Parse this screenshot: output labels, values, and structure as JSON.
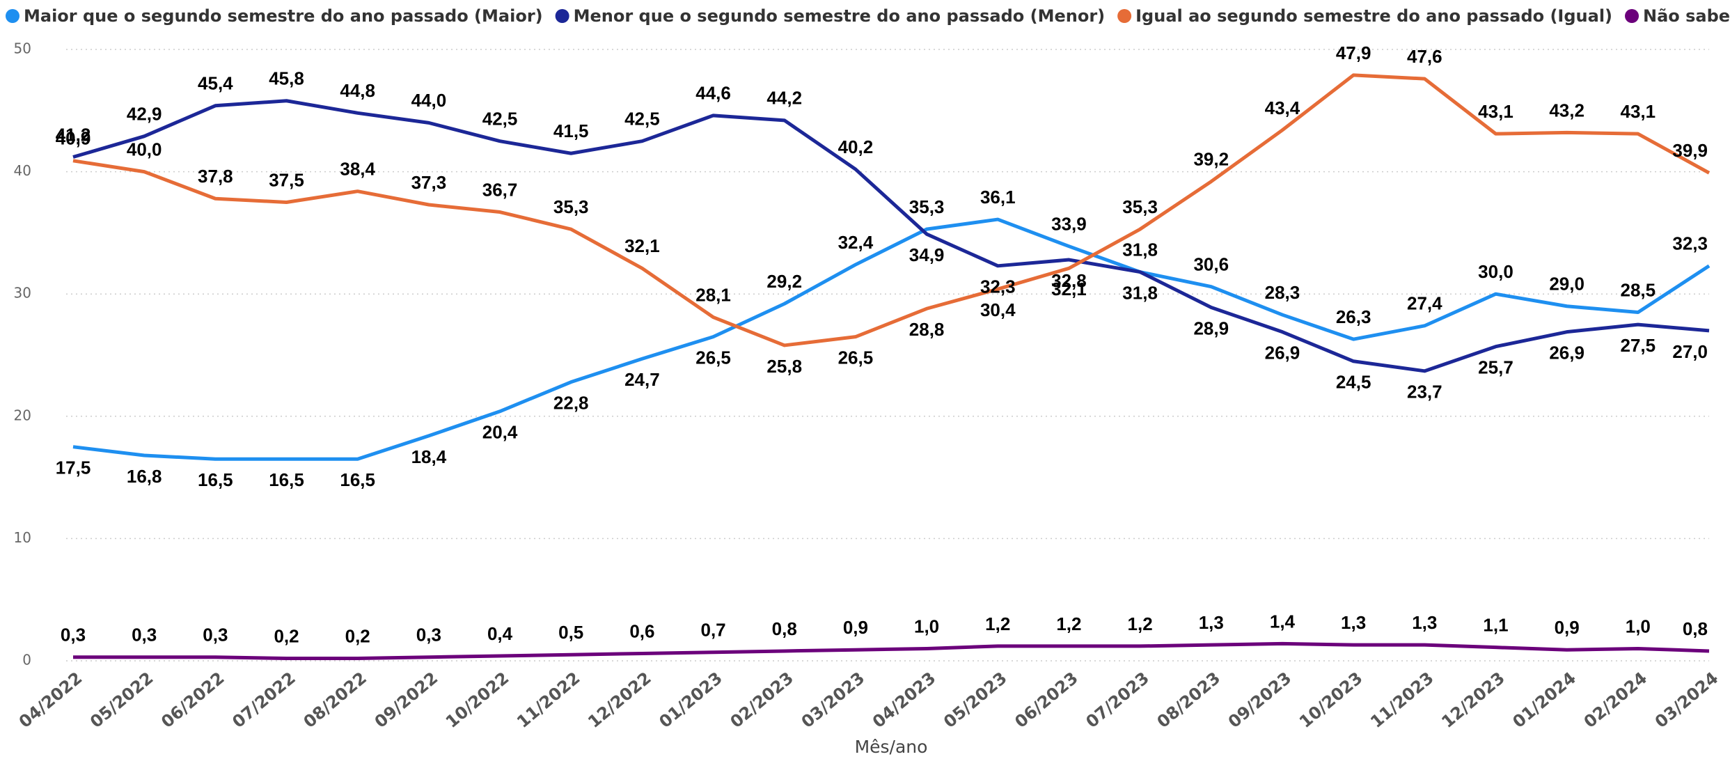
{
  "chart_data": {
    "type": "line",
    "x_label": "Mês/ano",
    "categories": [
      "04/2022",
      "05/2022",
      "06/2022",
      "07/2022",
      "08/2022",
      "09/2022",
      "10/2022",
      "11/2022",
      "12/2022",
      "01/2023",
      "02/2023",
      "03/2023",
      "04/2023",
      "05/2023",
      "06/2023",
      "07/2023",
      "08/2023",
      "09/2023",
      "10/2023",
      "11/2023",
      "12/2023",
      "01/2024",
      "02/2024",
      "03/2024"
    ],
    "ylim": [
      0,
      50
    ],
    "yticks": [
      0,
      10,
      20,
      30,
      40,
      50
    ],
    "grid": true,
    "legend": "top",
    "series": [
      {
        "name": "Maior que o segundo semestre do ano passado (Maior)",
        "color": "#1e8ff0",
        "values": [
          17.5,
          16.8,
          16.5,
          16.5,
          16.5,
          18.4,
          20.4,
          22.8,
          24.7,
          26.5,
          29.2,
          32.4,
          35.3,
          36.1,
          33.9,
          31.8,
          30.6,
          28.3,
          26.3,
          27.4,
          30.0,
          29.0,
          28.5,
          32.3
        ],
        "value_labels": [
          "17,5",
          "16,8",
          "16,5",
          "16,5",
          "16,5",
          "18,4",
          "20,4",
          "22,8",
          "24,7",
          "26,5",
          "29,2",
          "32,4",
          "35,3",
          "36,1",
          "33,9",
          "31,8",
          "30,6",
          "28,3",
          "26,3",
          "27,4",
          "30,0",
          "29,0",
          "28,5",
          "32,3"
        ]
      },
      {
        "name": "Menor que o segundo semestre do ano passado (Menor)",
        "color": "#1c2797",
        "values": [
          41.2,
          42.9,
          45.4,
          45.8,
          44.8,
          44.0,
          42.5,
          41.5,
          42.5,
          44.6,
          44.2,
          40.2,
          34.9,
          32.3,
          32.8,
          31.8,
          28.9,
          26.9,
          24.5,
          23.7,
          25.7,
          26.9,
          27.5,
          27.0
        ],
        "value_labels": [
          "41,2",
          "42,9",
          "45,4",
          "45,8",
          "44,8",
          "44,0",
          "42,5",
          "41,5",
          "42,5",
          "44,6",
          "44,2",
          "40,2",
          "34,9",
          "32,3",
          "32,8",
          "31,8",
          "28,9",
          "26,9",
          "24,5",
          "23,7",
          "25,7",
          "26,9",
          "27,5",
          "27,0"
        ]
      },
      {
        "name": "Igual ao segundo semestre do ano passado (Igual)",
        "color": "#e66c37",
        "values": [
          40.9,
          40.0,
          37.8,
          37.5,
          38.4,
          37.3,
          36.7,
          35.3,
          32.1,
          28.1,
          25.8,
          26.5,
          28.8,
          30.4,
          32.1,
          35.3,
          39.2,
          43.4,
          47.9,
          47.6,
          43.1,
          43.2,
          43.1,
          39.9
        ],
        "value_labels": [
          "40,9",
          "40,0",
          "37,8",
          "37,5",
          "38,4",
          "37,3",
          "36,7",
          "35,3",
          "32,1",
          "28,1",
          "25,8",
          "26,5",
          "28,8",
          "30,4",
          "32,1",
          "35,3",
          "39,2",
          "43,4",
          "47,9",
          "47,6",
          "43,1",
          "43,2",
          "43,1",
          "39,9"
        ]
      },
      {
        "name": "Não sabe / Não respondeu",
        "color": "#6b007b",
        "values": [
          0.3,
          0.3,
          0.3,
          0.2,
          0.2,
          0.3,
          0.4,
          0.5,
          0.6,
          0.7,
          0.8,
          0.9,
          1.0,
          1.2,
          1.2,
          1.2,
          1.3,
          1.4,
          1.3,
          1.3,
          1.1,
          0.9,
          1.0,
          0.8
        ],
        "value_labels": [
          "0,3",
          "0,3",
          "0,3",
          "0,2",
          "0,2",
          "0,3",
          "0,4",
          "0,5",
          "0,6",
          "0,7",
          "0,8",
          "0,9",
          "1,0",
          "1,2",
          "1,2",
          "1,2",
          "1,3",
          "1,4",
          "1,3",
          "1,3",
          "1,1",
          "0,9",
          "1,0",
          "0,8"
        ]
      }
    ]
  }
}
